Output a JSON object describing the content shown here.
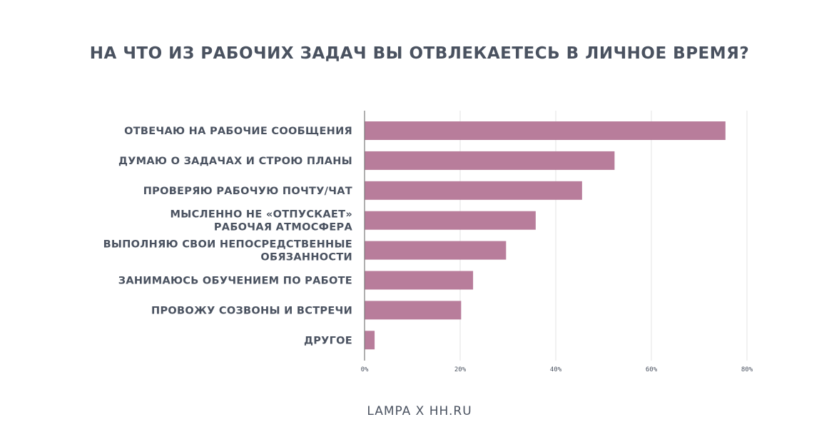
{
  "chart_data": {
    "type": "bar",
    "orientation": "horizontal",
    "title": "НА ЧТО ИЗ РАБОЧИХ ЗАДАЧ ВЫ ОТВЛЕКАЕТЕСЬ В ЛИЧНОЕ ВРЕМЯ?",
    "categories": [
      [
        "ОТВЕЧАЮ НА РАБОЧИЕ СООБЩЕНИЯ"
      ],
      [
        "ДУМАЮ О ЗАДАЧАХ И СТРОЮ ПЛАНЫ"
      ],
      [
        "ПРОВЕРЯЮ РАБОЧУЮ ПОЧТУ/ЧАТ"
      ],
      [
        "МЫСЛЕННО НЕ «ОТПУСКАЕТ»",
        "РАБОЧАЯ АТМОСФЕРА"
      ],
      [
        "ВЫПОЛНЯЮ СВОИ НЕПОСРЕДСТВЕННЫЕ",
        "ОБЯЗАННОСТИ"
      ],
      [
        "ЗАНИМАЮСЬ ОБУЧЕНИЕМ ПО РАБОТЕ"
      ],
      [
        "ПРОВОЖУ СОЗВОНЫ И ВСТРЕЧИ"
      ],
      [
        "ДРУГОЕ"
      ]
    ],
    "values": [
      75.5,
      52.3,
      45.5,
      35.8,
      29.6,
      22.7,
      20.2,
      2.1
    ],
    "x_ticks": [
      "0%",
      "20%",
      "40%",
      "60%",
      "80%"
    ],
    "xlim": [
      0,
      80
    ],
    "grid": true,
    "bar_color": "#b87d9b"
  },
  "footer": {
    "text": "LAMPA X HH.RU"
  },
  "colors": {
    "text": "#4a5260",
    "grid": "#e3e3e3",
    "axis": "#7a7a7a"
  }
}
